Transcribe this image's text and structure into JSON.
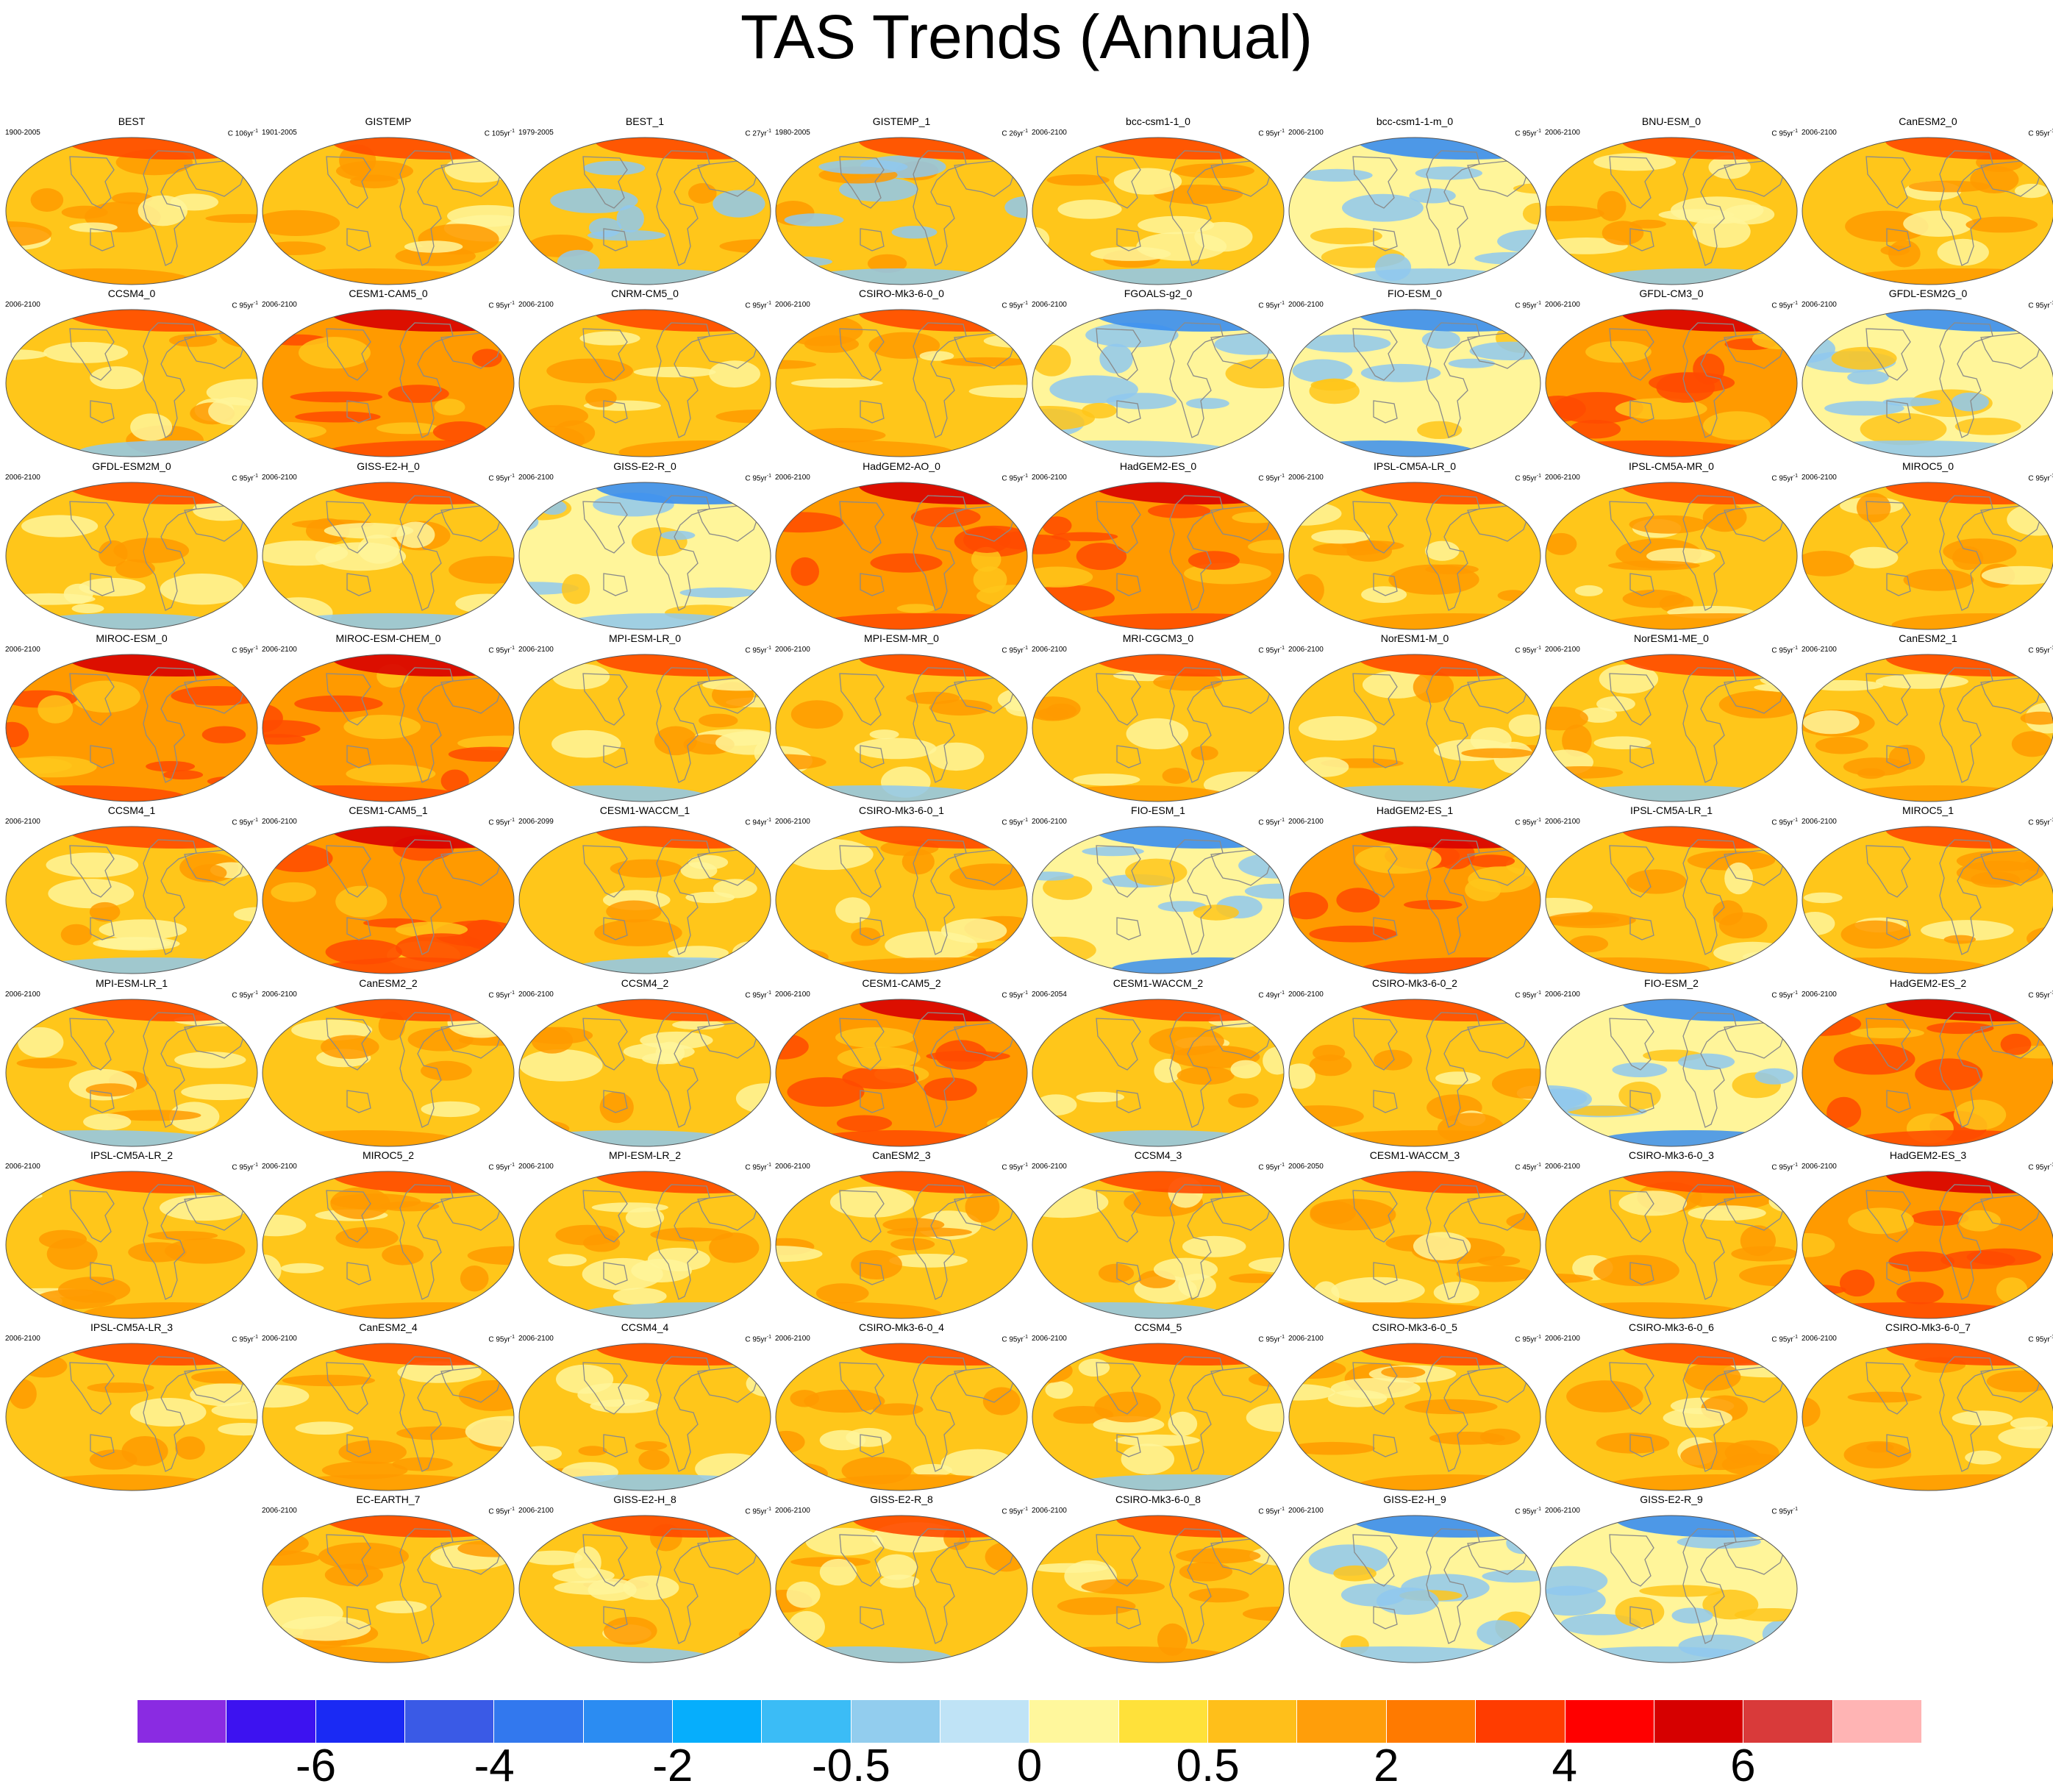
{
  "title": "TAS Trends (Annual)",
  "colors": {
    "ocean_base": "#ffc61a",
    "warm": "#ff9a00",
    "hot": "#ff4a00",
    "very_hot": "#d80000",
    "cool": "#fff59a",
    "cold": "#8fc8ef",
    "colder": "#3a8ef0",
    "coldest": "#6a28e0",
    "coast": "#8a8a8a"
  },
  "panels": [
    {
      "name": "BEST",
      "period": "1900-2005",
      "scale": "C 106yr",
      "theme": "warm"
    },
    {
      "name": "GISTEMP",
      "period": "1901-2005",
      "scale": "C 105yr",
      "theme": "warm"
    },
    {
      "name": "BEST_1",
      "period": "1979-2005",
      "scale": "C 27yr",
      "theme": "mixed"
    },
    {
      "name": "GISTEMP_1",
      "period": "1980-2005",
      "scale": "C 26yr",
      "theme": "mixed"
    },
    {
      "name": "bcc-csm1-1_0",
      "period": "2006-2100",
      "scale": "C 95yr",
      "theme": "mild"
    },
    {
      "name": "bcc-csm1-1-m_0",
      "period": "2006-2100",
      "scale": "C 95yr",
      "theme": "cool"
    },
    {
      "name": "BNU-ESM_0",
      "period": "2006-2100",
      "scale": "C 95yr",
      "theme": "mild"
    },
    {
      "name": "CanESM2_0",
      "period": "2006-2100",
      "scale": "C 95yr",
      "theme": "warm"
    },
    {
      "name": "CCSM4_0",
      "period": "2006-2100",
      "scale": "C 95yr",
      "theme": "mild"
    },
    {
      "name": "CESM1-CAM5_0",
      "period": "2006-2100",
      "scale": "C 95yr",
      "theme": "hot"
    },
    {
      "name": "CNRM-CM5_0",
      "period": "2006-2100",
      "scale": "C 95yr",
      "theme": "warm"
    },
    {
      "name": "CSIRO-Mk3-6-0_0",
      "period": "2006-2100",
      "scale": "C 95yr",
      "theme": "warm"
    },
    {
      "name": "FGOALS-g2_0",
      "period": "2006-2100",
      "scale": "C 95yr",
      "theme": "cool"
    },
    {
      "name": "FIO-ESM_0",
      "period": "2006-2100",
      "scale": "C 95yr",
      "theme": "cold"
    },
    {
      "name": "GFDL-CM3_0",
      "period": "2006-2100",
      "scale": "C 95yr",
      "theme": "hot"
    },
    {
      "name": "GFDL-ESM2G_0",
      "period": "2006-2100",
      "scale": "C 95yr",
      "theme": "cool"
    },
    {
      "name": "GFDL-ESM2M_0",
      "period": "2006-2100",
      "scale": "C 95yr",
      "theme": "mild"
    },
    {
      "name": "GISS-E2-H_0",
      "period": "2006-2100",
      "scale": "C 95yr",
      "theme": "mild"
    },
    {
      "name": "GISS-E2-R_0",
      "period": "2006-2100",
      "scale": "C 95yr",
      "theme": "cool"
    },
    {
      "name": "HadGEM2-AO_0",
      "period": "2006-2100",
      "scale": "C 95yr",
      "theme": "hot"
    },
    {
      "name": "HadGEM2-ES_0",
      "period": "2006-2100",
      "scale": "C 95yr",
      "theme": "hot"
    },
    {
      "name": "IPSL-CM5A-LR_0",
      "period": "2006-2100",
      "scale": "C 95yr",
      "theme": "warm"
    },
    {
      "name": "IPSL-CM5A-MR_0",
      "period": "2006-2100",
      "scale": "C 95yr",
      "theme": "warm"
    },
    {
      "name": "MIROC5_0",
      "period": "2006-2100",
      "scale": "C 95yr",
      "theme": "warm"
    },
    {
      "name": "MIROC-ESM_0",
      "period": "2006-2100",
      "scale": "C 95yr",
      "theme": "hot"
    },
    {
      "name": "MIROC-ESM-CHEM_0",
      "period": "2006-2100",
      "scale": "C 95yr",
      "theme": "hot"
    },
    {
      "name": "MPI-ESM-LR_0",
      "period": "2006-2100",
      "scale": "C 95yr",
      "theme": "mild"
    },
    {
      "name": "MPI-ESM-MR_0",
      "period": "2006-2100",
      "scale": "C 95yr",
      "theme": "mild"
    },
    {
      "name": "MRI-CGCM3_0",
      "period": "2006-2100",
      "scale": "C 95yr",
      "theme": "warm"
    },
    {
      "name": "NorESM1-M_0",
      "period": "2006-2100",
      "scale": "C 95yr",
      "theme": "mild"
    },
    {
      "name": "NorESM1-ME_0",
      "period": "2006-2100",
      "scale": "C 95yr",
      "theme": "mild"
    },
    {
      "name": "CanESM2_1",
      "period": "2006-2100",
      "scale": "C 95yr",
      "theme": "warm"
    },
    {
      "name": "CCSM4_1",
      "period": "2006-2100",
      "scale": "C 95yr",
      "theme": "mild"
    },
    {
      "name": "CESM1-CAM5_1",
      "period": "2006-2100",
      "scale": "C 95yr",
      "theme": "hot"
    },
    {
      "name": "CESM1-WACCM_1",
      "period": "2006-2099",
      "scale": "C 94yr",
      "theme": "mild"
    },
    {
      "name": "CSIRO-Mk3-6-0_1",
      "period": "2006-2100",
      "scale": "C 95yr",
      "theme": "warm"
    },
    {
      "name": "FIO-ESM_1",
      "period": "2006-2100",
      "scale": "C 95yr",
      "theme": "cold"
    },
    {
      "name": "HadGEM2-ES_1",
      "period": "2006-2100",
      "scale": "C 95yr",
      "theme": "hot"
    },
    {
      "name": "IPSL-CM5A-LR_1",
      "period": "2006-2100",
      "scale": "C 95yr",
      "theme": "warm"
    },
    {
      "name": "MIROC5_1",
      "period": "2006-2100",
      "scale": "C 95yr",
      "theme": "warm"
    },
    {
      "name": "MPI-ESM-LR_1",
      "period": "2006-2100",
      "scale": "C 95yr",
      "theme": "mild"
    },
    {
      "name": "CanESM2_2",
      "period": "2006-2100",
      "scale": "C 95yr",
      "theme": "warm"
    },
    {
      "name": "CCSM4_2",
      "period": "2006-2100",
      "scale": "C 95yr",
      "theme": "mild"
    },
    {
      "name": "CESM1-CAM5_2",
      "period": "2006-2100",
      "scale": "C 95yr",
      "theme": "hot"
    },
    {
      "name": "CESM1-WACCM_2",
      "period": "2006-2054",
      "scale": "C 49yr",
      "theme": "mild"
    },
    {
      "name": "CSIRO-Mk3-6-0_2",
      "period": "2006-2100",
      "scale": "C 95yr",
      "theme": "warm"
    },
    {
      "name": "FIO-ESM_2",
      "period": "2006-2100",
      "scale": "C 95yr",
      "theme": "cold"
    },
    {
      "name": "HadGEM2-ES_2",
      "period": "2006-2100",
      "scale": "C 95yr",
      "theme": "hot"
    },
    {
      "name": "IPSL-CM5A-LR_2",
      "period": "2006-2100",
      "scale": "C 95yr",
      "theme": "warm"
    },
    {
      "name": "MIROC5_2",
      "period": "2006-2100",
      "scale": "C 95yr",
      "theme": "warm"
    },
    {
      "name": "MPI-ESM-LR_2",
      "period": "2006-2100",
      "scale": "C 95yr",
      "theme": "mild"
    },
    {
      "name": "CanESM2_3",
      "period": "2006-2100",
      "scale": "C 95yr",
      "theme": "warm"
    },
    {
      "name": "CCSM4_3",
      "period": "2006-2100",
      "scale": "C 95yr",
      "theme": "mild"
    },
    {
      "name": "CESM1-WACCM_3",
      "period": "2006-2050",
      "scale": "C 45yr",
      "theme": "warm"
    },
    {
      "name": "CSIRO-Mk3-6-0_3",
      "period": "2006-2100",
      "scale": "C 95yr",
      "theme": "warm"
    },
    {
      "name": "HadGEM2-ES_3",
      "period": "2006-2100",
      "scale": "C 95yr",
      "theme": "hot"
    },
    {
      "name": "IPSL-CM5A-LR_3",
      "period": "2006-2100",
      "scale": "C 95yr",
      "theme": "warm"
    },
    {
      "name": "CanESM2_4",
      "period": "2006-2100",
      "scale": "C 95yr",
      "theme": "warm"
    },
    {
      "name": "CCSM4_4",
      "period": "2006-2100",
      "scale": "C 95yr",
      "theme": "mild"
    },
    {
      "name": "CSIRO-Mk3-6-0_4",
      "period": "2006-2100",
      "scale": "C 95yr",
      "theme": "warm"
    },
    {
      "name": "CCSM4_5",
      "period": "2006-2100",
      "scale": "C 95yr",
      "theme": "mild"
    },
    {
      "name": "CSIRO-Mk3-6-0_5",
      "period": "2006-2100",
      "scale": "C 95yr",
      "theme": "warm"
    },
    {
      "name": "CSIRO-Mk3-6-0_6",
      "period": "2006-2100",
      "scale": "C 95yr",
      "theme": "warm"
    },
    {
      "name": "CSIRO-Mk3-6-0_7",
      "period": "2006-2100",
      "scale": "C 95yr",
      "theme": "warm"
    },
    {
      "name": "EC-EARTH_7",
      "period": "2006-2100",
      "scale": "C 95yr",
      "theme": "warm"
    },
    {
      "name": "GISS-E2-H_8",
      "period": "2006-2100",
      "scale": "C 95yr",
      "theme": "mild"
    },
    {
      "name": "GISS-E2-R_8",
      "period": "2006-2100",
      "scale": "C 95yr",
      "theme": "mild"
    },
    {
      "name": "CSIRO-Mk3-6-0_8",
      "period": "2006-2100",
      "scale": "C 95yr",
      "theme": "warm"
    },
    {
      "name": "GISS-E2-H_9",
      "period": "2006-2100",
      "scale": "C 95yr",
      "theme": "cool"
    },
    {
      "name": "GISS-E2-R_9",
      "period": "2006-2100",
      "scale": "C 95yr",
      "theme": "cool"
    }
  ],
  "colorbar": {
    "colors": [
      "#8a2be2",
      "#3d12f0",
      "#1a2af4",
      "#3a5ae6",
      "#3278ee",
      "#2b8cf2",
      "#06aefc",
      "#3bbcf6",
      "#92cdee",
      "#bfe3f6",
      "#fff79c",
      "#ffe13a",
      "#ffbf1a",
      "#ff9e0a",
      "#ff7a00",
      "#ff3c00",
      "#ff0000",
      "#d60000",
      "#d93a3a",
      "#ffb4b4"
    ],
    "labels": [
      "-6",
      "-4",
      "-2",
      "-0.5",
      "0",
      "0.5",
      "2",
      "4",
      "6"
    ],
    "label_boundaries": [
      2,
      4,
      6,
      8,
      10,
      12,
      14,
      16,
      18
    ]
  }
}
